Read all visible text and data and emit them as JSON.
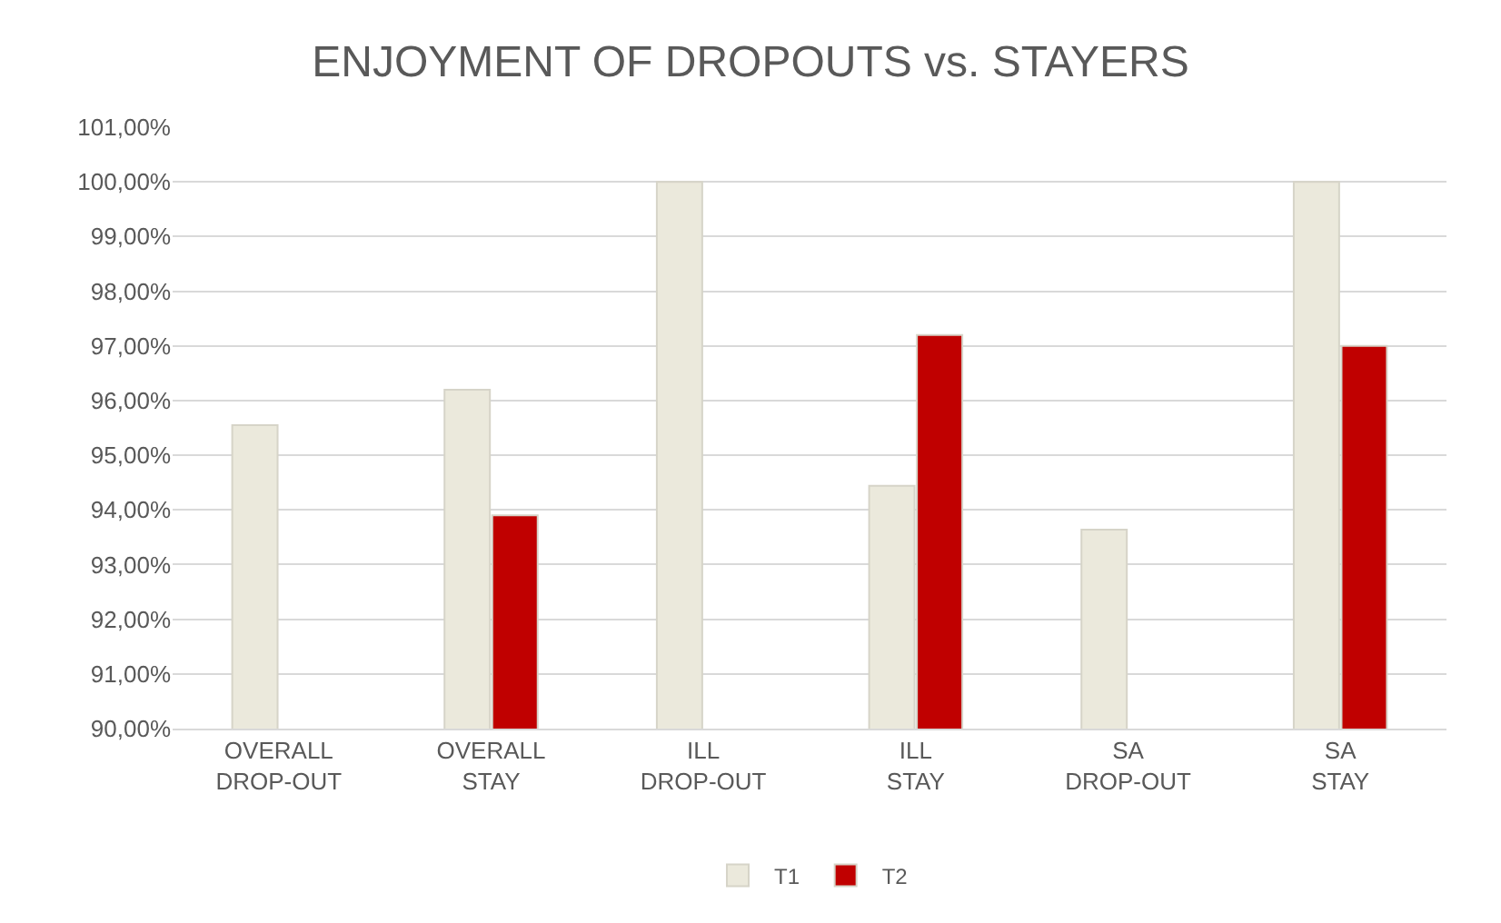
{
  "chart_data": {
    "type": "bar",
    "title": "ENJOYMENT OF DROPOUTS vs. STAYERS",
    "categories": [
      "OVERALL\nDROP-OUT",
      "OVERALL\nSTAY",
      "ILL\nDROP-OUT",
      "ILL\nSTAY",
      "SA\nDROP-OUT",
      "SA\nSTAY"
    ],
    "series": [
      {
        "name": "T1",
        "color": "#ebe9dc",
        "values": [
          95.55,
          96.2,
          100,
          94.44,
          93.64,
          100
        ]
      },
      {
        "name": "T2",
        "color": "#c00000",
        "values": [
          null,
          93.9,
          null,
          97.2,
          null,
          97.0
        ]
      }
    ],
    "ylim": [
      90,
      101
    ],
    "yticks": [
      {
        "value": 90,
        "label": "90,00%"
      },
      {
        "value": 91,
        "label": "91,00%"
      },
      {
        "value": 92,
        "label": "92,00%"
      },
      {
        "value": 93,
        "label": "93,00%"
      },
      {
        "value": 94,
        "label": "94,00%"
      },
      {
        "value": 95,
        "label": "95,00%"
      },
      {
        "value": 96,
        "label": "96,00%"
      },
      {
        "value": 97,
        "label": "97,00%"
      },
      {
        "value": 98,
        "label": "98,00%"
      },
      {
        "value": 99,
        "label": "99,00%"
      },
      {
        "value": 100,
        "label": "100,00%"
      },
      {
        "value": 101,
        "label": "101,00%"
      }
    ],
    "grid": "y",
    "legend": "bottom"
  }
}
